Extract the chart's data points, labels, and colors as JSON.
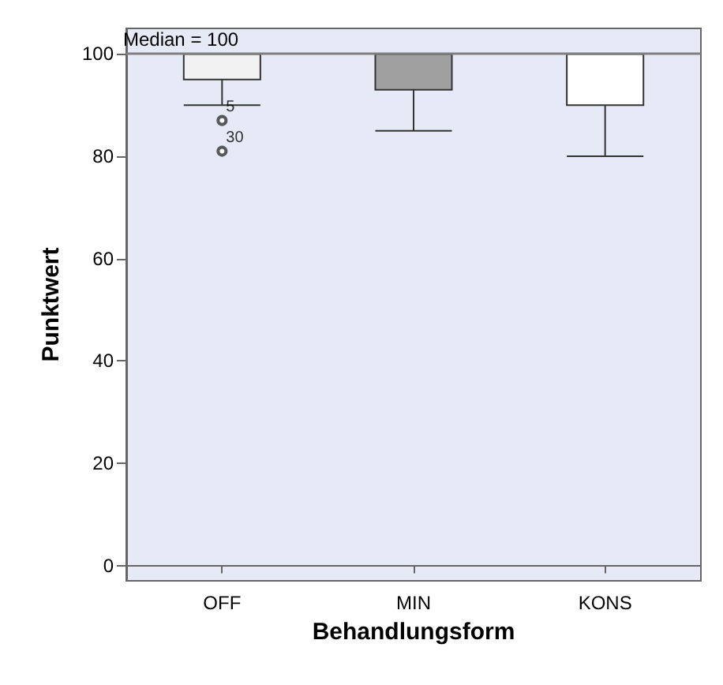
{
  "chart_data": {
    "type": "box",
    "xlabel": "Behandlungsform",
    "ylabel": "Punktwert",
    "categories": [
      "OFF",
      "MIN",
      "KONS"
    ],
    "boxes": [
      {
        "low": 90,
        "q1": 95,
        "median": 100,
        "q3": 100,
        "high": 100,
        "outliers": [
          87,
          81
        ]
      },
      {
        "low": 85,
        "q1": 93,
        "median": 100,
        "q3": 100,
        "high": 100
      },
      {
        "low": 80,
        "q1": 90,
        "median": 100,
        "q3": 100,
        "high": 100
      }
    ],
    "colors": [
      "#f2f2f2",
      "#a0a0a0",
      "#ffffff"
    ],
    "ylim": [
      -3,
      105
    ],
    "yticks": [
      0,
      20,
      40,
      60,
      80,
      100
    ],
    "grid": false,
    "ref_lines": [
      {
        "axis": "y",
        "value": 100,
        "label": "Median = 100",
        "color": "#808080"
      }
    ],
    "annotations": [
      "5",
      "30"
    ]
  }
}
